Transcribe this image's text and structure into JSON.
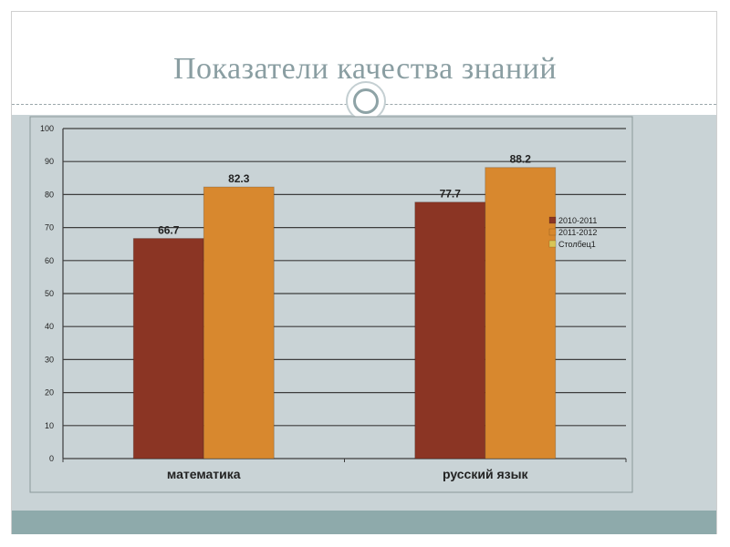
{
  "slide": {
    "title": "Показатели качества знаний"
  },
  "colors": {
    "title": "#8a9ea2",
    "content_band": "#c9d3d6",
    "footer_band": "#8eaaab"
  },
  "chart_data": {
    "type": "bar",
    "title": "",
    "xlabel": "",
    "ylabel": "",
    "categories": [
      "математика",
      "русский язык"
    ],
    "series": [
      {
        "name": "2010-2011",
        "values": [
          66.7,
          77.7
        ],
        "color": "#8b3524"
      },
      {
        "name": "2011-2012",
        "values": [
          82.3,
          88.2
        ],
        "color": "#d8882e"
      },
      {
        "name": "Столбец1",
        "values": [
          null,
          null
        ],
        "color": "#d9c556"
      }
    ],
    "ylim": [
      0,
      100
    ],
    "yticks": [
      0,
      10,
      20,
      30,
      40,
      50,
      60,
      70,
      80,
      90,
      100
    ],
    "grid": true,
    "legend": "right",
    "data_labels": true
  }
}
